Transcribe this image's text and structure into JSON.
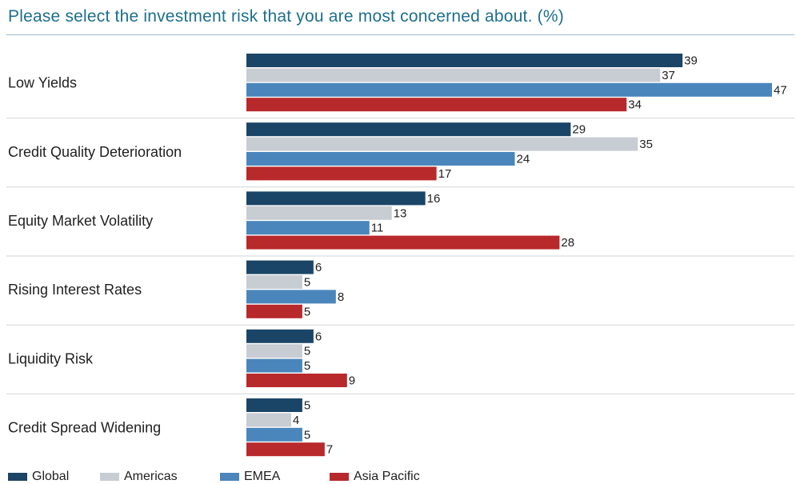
{
  "title": "Please select the investment risk that you are most concerned about. (%)",
  "chart_data": {
    "type": "bar",
    "orientation": "horizontal",
    "title": "Please select the investment risk that you are most concerned about. (%)",
    "categories": [
      "Low Yields",
      "Credit Quality Deterioration",
      "Equity Market Volatility",
      "Rising Interest Rates",
      "Liquidity Risk",
      "Credit Spread Widening"
    ],
    "series": [
      {
        "name": "Global",
        "color": "#1b4566",
        "values": [
          39,
          29,
          16,
          6,
          6,
          5
        ]
      },
      {
        "name": "Americas",
        "color": "#c8cdd3",
        "values": [
          37,
          35,
          13,
          5,
          5,
          4
        ]
      },
      {
        "name": "EMEA",
        "color": "#4a86bb",
        "values": [
          47,
          24,
          11,
          8,
          5,
          5
        ]
      },
      {
        "name": "Asia Pacific",
        "color": "#b8292c",
        "values": [
          34,
          17,
          28,
          5,
          9,
          7
        ]
      }
    ],
    "xlim": [
      0,
      47
    ],
    "grid": false,
    "legend_position": "bottom-left"
  }
}
